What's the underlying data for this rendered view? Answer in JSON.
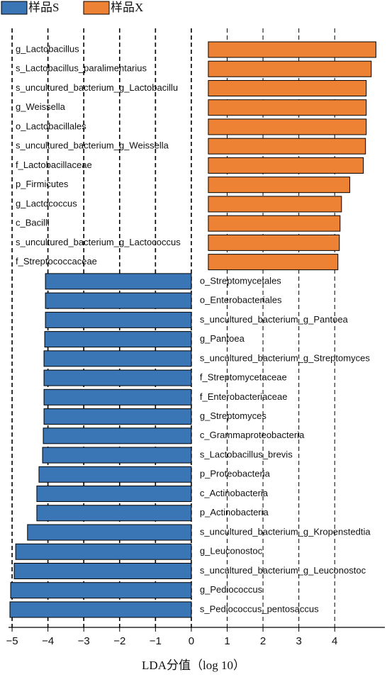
{
  "chart_data": {
    "type": "bar",
    "orientation": "horizontal",
    "x_label": "LDA分值（log 10）",
    "categories": [
      "g_Lactobacillus",
      "s_Lactobacillus_paralimentarius",
      "s_uncultured_bacterium_g_Lactobacillu",
      "g_Weissella",
      "o_Lactobacillales",
      "s_uncultured_bacterium_g_Weissella",
      "f_Lactobacillaceae",
      "p_Firmicutes",
      "g_Lactococcus",
      "c_Bacilli",
      "s_uncultured_bacterium_g_Lactococcus",
      "f_Streptococcaceae",
      "o_Streptomycetales",
      "o_Enterobacteriales",
      "s_uncultured_bacterium_g_Pantoea",
      "g_Pantoea",
      "s_uncultured_bacterium_g_Streptomyces",
      "f_Streptomycetaceae",
      "f_Enterobacteriaceae",
      "g_Streptomyces",
      "c_Grammaproteobacteria",
      "s_Lactobacillus_brevis",
      "p_Proteobacteria",
      "c_Actinobacteria",
      "p_Actinobacteria",
      "s_uncultured_bacterium_g_Kropenstedtia",
      "g_Leuconostoc",
      "s_uncultured_bacterium_g_Leuconostoc",
      "g_Pediococcus",
      "s_Pediococcus_pentosaccus"
    ],
    "series": [
      {
        "name": "样品S",
        "color": "#3a75b5",
        "values": [
          null,
          null,
          null,
          null,
          null,
          null,
          null,
          null,
          null,
          null,
          null,
          null,
          -4.07,
          -4.07,
          -4.07,
          -4.09,
          -4.11,
          -4.11,
          -4.11,
          -4.11,
          -4.13,
          -4.15,
          -4.25,
          -4.31,
          -4.31,
          -4.57,
          -4.9,
          -4.94,
          -5.04,
          -5.06
        ]
      },
      {
        "name": "样品X",
        "color": "#ee8234",
        "values": [
          5.15,
          5.02,
          4.88,
          4.88,
          4.88,
          4.86,
          4.8,
          4.42,
          4.19,
          4.15,
          4.13,
          4.09,
          null,
          null,
          null,
          null,
          null,
          null,
          null,
          null,
          null,
          null,
          null,
          null,
          null,
          null,
          null,
          null,
          null,
          null
        ]
      }
    ],
    "xlim": [
      -5.1,
      5.4
    ],
    "xticks": [
      {
        "value": -5,
        "label": "−5"
      },
      {
        "value": -4,
        "label": "−4"
      },
      {
        "value": -3,
        "label": "−3"
      },
      {
        "value": -2,
        "label": "−2"
      },
      {
        "value": -1,
        "label": "−1"
      },
      0,
      1,
      2,
      3,
      4
    ],
    "grid": true,
    "legend": "top-left"
  }
}
